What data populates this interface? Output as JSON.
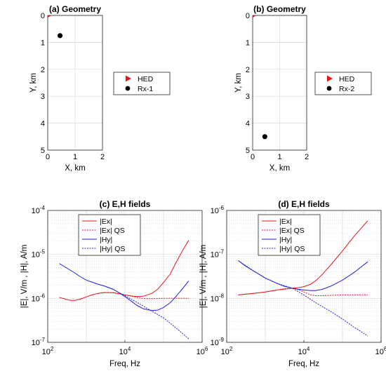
{
  "chart_data": [
    {
      "type": "scatter",
      "title": "(a) Geometry",
      "xlabel": "X, km",
      "ylabel": "Y, km",
      "xlim": [
        0,
        2
      ],
      "ylim": [
        0,
        5
      ],
      "y_reversed": true,
      "xticks": [
        "0",
        "1",
        "2"
      ],
      "yticks": [
        "0",
        "1",
        "2",
        "3",
        "4",
        "5"
      ],
      "grid": true,
      "legend_placement": "outside-right",
      "series": [
        {
          "name": "HED",
          "marker": "triangle-right",
          "color": "#e8141c",
          "points": [
            [
              0,
              0
            ]
          ]
        },
        {
          "name": "Rx-1",
          "marker": "circle",
          "color": "#000000",
          "points": [
            [
              0.45,
              0.75
            ]
          ]
        }
      ]
    },
    {
      "type": "scatter",
      "title": "(b) Geometry",
      "xlabel": "X, km",
      "ylabel": "Y, km",
      "xlim": [
        0,
        2
      ],
      "ylim": [
        0,
        5
      ],
      "y_reversed": true,
      "xticks": [
        "0",
        "1",
        "2"
      ],
      "yticks": [
        "0",
        "1",
        "2",
        "3",
        "4",
        "5"
      ],
      "grid": true,
      "legend_placement": "outside-right",
      "series": [
        {
          "name": "HED",
          "marker": "triangle-right",
          "color": "#e8141c",
          "points": [
            [
              0,
              0
            ]
          ]
        },
        {
          "name": "Rx-2",
          "marker": "circle",
          "color": "#000000",
          "points": [
            [
              0.45,
              4.5
            ]
          ]
        }
      ]
    },
    {
      "type": "line",
      "title": "(c) E,H fields",
      "xlabel": "Freq, Hz",
      "ylabel": "|E|, V/m , |H|, A/m",
      "x_scale": "log",
      "y_scale": "log",
      "xlim": [
        100,
        1000000
      ],
      "ylim": [
        1e-07,
        0.0001
      ],
      "xticks": [
        {
          "b": "10",
          "e": "2"
        },
        {
          "b": "10",
          "e": "4"
        },
        {
          "b": "10",
          "e": "6"
        }
      ],
      "yticks": [
        {
          "b": "10",
          "e": "-7"
        },
        {
          "b": "10",
          "e": "-6"
        },
        {
          "b": "10",
          "e": "-5"
        },
        {
          "b": "10",
          "e": "-4"
        }
      ],
      "grid": true,
      "legend_placement": "top-center",
      "series": [
        {
          "name": "|Ex|",
          "color": "#e8141c",
          "dash": "solid",
          "points": [
            [
              200,
              1.05e-06
            ],
            [
              300,
              9.5e-07
            ],
            [
              400,
              9e-07
            ],
            [
              500,
              9e-07
            ],
            [
              700,
              9.6e-07
            ],
            [
              1000,
              1.08e-06
            ],
            [
              1500,
              1.22e-06
            ],
            [
              2000,
              1.3e-06
            ],
            [
              3000,
              1.36e-06
            ],
            [
              5000,
              1.35e-06
            ],
            [
              7000,
              1.28e-06
            ],
            [
              10000,
              1.2e-06
            ],
            [
              15000,
              1.13e-06
            ],
            [
              20000,
              1.1e-06
            ],
            [
              30000,
              1.12e-06
            ],
            [
              50000,
              1.3e-06
            ],
            [
              70000,
              1.6e-06
            ],
            [
              100000,
              2.3e-06
            ],
            [
              150000,
              3.6e-06
            ],
            [
              200000,
              6e-06
            ],
            [
              300000,
              1.15e-05
            ],
            [
              450000,
              2.1e-05
            ]
          ]
        },
        {
          "name": "|Ex| QS",
          "color": "#e8141c",
          "dash": "dotted",
          "points": [
            [
              2000,
              1.3e-06
            ],
            [
              3000,
              1.36e-06
            ],
            [
              5000,
              1.35e-06
            ],
            [
              7000,
              1.28e-06
            ],
            [
              10000,
              1.2e-06
            ],
            [
              15000,
              1.12e-06
            ],
            [
              20000,
              1.05e-06
            ],
            [
              30000,
              9.9e-07
            ],
            [
              50000,
              9.8e-07
            ],
            [
              100000,
              1e-06
            ],
            [
              200000,
              1e-06
            ],
            [
              450000,
              1e-06
            ]
          ]
        },
        {
          "name": "|Hy|",
          "color": "#1f1fe0",
          "dash": "solid",
          "points": [
            [
              200,
              6.2e-06
            ],
            [
              300,
              5e-06
            ],
            [
              500,
              3.8e-06
            ],
            [
              700,
              3.1e-06
            ],
            [
              1000,
              2.6e-06
            ],
            [
              2000,
              2.1e-06
            ],
            [
              3000,
              1.9e-06
            ],
            [
              5000,
              1.6e-06
            ],
            [
              7000,
              1.35e-06
            ],
            [
              10000,
              1.1e-06
            ],
            [
              15000,
              8.5e-07
            ],
            [
              20000,
              7e-07
            ],
            [
              30000,
              5.8e-07
            ],
            [
              50000,
              5.3e-07
            ],
            [
              70000,
              5.4e-07
            ],
            [
              100000,
              6.2e-07
            ],
            [
              150000,
              8e-07
            ],
            [
              200000,
              1.05e-06
            ],
            [
              300000,
              1.6e-06
            ],
            [
              450000,
              2.5e-06
            ]
          ]
        },
        {
          "name": "|Hy| QS",
          "color": "#1f1fe0",
          "dash": "dotted",
          "points": [
            [
              3000,
              1.9e-06
            ],
            [
              5000,
              1.6e-06
            ],
            [
              7000,
              1.35e-06
            ],
            [
              10000,
              1.15e-06
            ],
            [
              20000,
              8.2e-07
            ],
            [
              50000,
              5.1e-07
            ],
            [
              100000,
              3.6e-07
            ],
            [
              200000,
              2.2e-07
            ],
            [
              450000,
              1.2e-07
            ]
          ]
        }
      ]
    },
    {
      "type": "line",
      "title": "(d) E,H fields",
      "xlabel": "Freq, Hz",
      "ylabel": "|E|, V/m , |H|, A/m",
      "x_scale": "log",
      "y_scale": "log",
      "xlim": [
        100,
        1000000
      ],
      "ylim": [
        1e-09,
        1e-06
      ],
      "xticks": [
        {
          "b": "10",
          "e": "2"
        },
        {
          "b": "10",
          "e": "4"
        },
        {
          "b": "10",
          "e": "6"
        }
      ],
      "yticks": [
        {
          "b": "10",
          "e": "-9"
        },
        {
          "b": "10",
          "e": "-8"
        },
        {
          "b": "10",
          "e": "-7"
        },
        {
          "b": "10",
          "e": "-6"
        }
      ],
      "grid": true,
      "legend_placement": "top-center",
      "series": [
        {
          "name": "|Ex|",
          "color": "#e8141c",
          "dash": "solid",
          "points": [
            [
              200,
              1.2e-08
            ],
            [
              500,
              1.3e-08
            ],
            [
              1000,
              1.4e-08
            ],
            [
              2000,
              1.55e-08
            ],
            [
              3000,
              1.62e-08
            ],
            [
              5000,
              1.7e-08
            ],
            [
              7000,
              1.75e-08
            ],
            [
              10000,
              1.85e-08
            ],
            [
              15000,
              2.1e-08
            ],
            [
              20000,
              2.5e-08
            ],
            [
              30000,
              3.5e-08
            ],
            [
              50000,
              5.8e-08
            ],
            [
              100000,
              1.2e-07
            ],
            [
              200000,
              2.6e-07
            ],
            [
              450000,
              5.8e-07
            ]
          ]
        },
        {
          "name": "|Ex| QS",
          "color": "#e8141c",
          "dash": "dotted",
          "points": [
            [
              200,
              1.2e-08
            ],
            [
              500,
              1.3e-08
            ],
            [
              1000,
              1.4e-08
            ],
            [
              2000,
              1.55e-08
            ],
            [
              3000,
              1.65e-08
            ],
            [
              5000,
              1.7e-08
            ],
            [
              7000,
              1.6e-08
            ],
            [
              10000,
              1.4e-08
            ],
            [
              15000,
              1.2e-08
            ],
            [
              20000,
              1.15e-08
            ],
            [
              30000,
              1.15e-08
            ],
            [
              100000,
              1.2e-08
            ],
            [
              450000,
              1.2e-08
            ]
          ]
        },
        {
          "name": "|Hy|",
          "color": "#1f1fe0",
          "dash": "solid",
          "points": [
            [
              200,
              7.2e-08
            ],
            [
              300,
              5.5e-08
            ],
            [
              500,
              4.2e-08
            ],
            [
              700,
              3.5e-08
            ],
            [
              1000,
              2.9e-08
            ],
            [
              2000,
              2.2e-08
            ],
            [
              3000,
              1.9e-08
            ],
            [
              5000,
              1.7e-08
            ],
            [
              7000,
              1.62e-08
            ],
            [
              10000,
              1.55e-08
            ],
            [
              15000,
              1.5e-08
            ],
            [
              20000,
              1.5e-08
            ],
            [
              30000,
              1.6e-08
            ],
            [
              50000,
              1.9e-08
            ],
            [
              100000,
              2.6e-08
            ],
            [
              200000,
              3.9e-08
            ],
            [
              450000,
              6.8e-08
            ]
          ]
        },
        {
          "name": "|Hy| QS",
          "color": "#1f1fe0",
          "dash": "dotted",
          "points": [
            [
              200,
              7.2e-08
            ],
            [
              500,
              4.2e-08
            ],
            [
              1000,
              2.9e-08
            ],
            [
              2000,
              2.2e-08
            ],
            [
              5000,
              1.7e-08
            ],
            [
              10000,
              1.2e-08
            ],
            [
              20000,
              8e-09
            ],
            [
              50000,
              5e-09
            ],
            [
              100000,
              3.4e-09
            ],
            [
              200000,
              2.2e-09
            ],
            [
              450000,
              1.4e-09
            ]
          ]
        }
      ]
    }
  ]
}
